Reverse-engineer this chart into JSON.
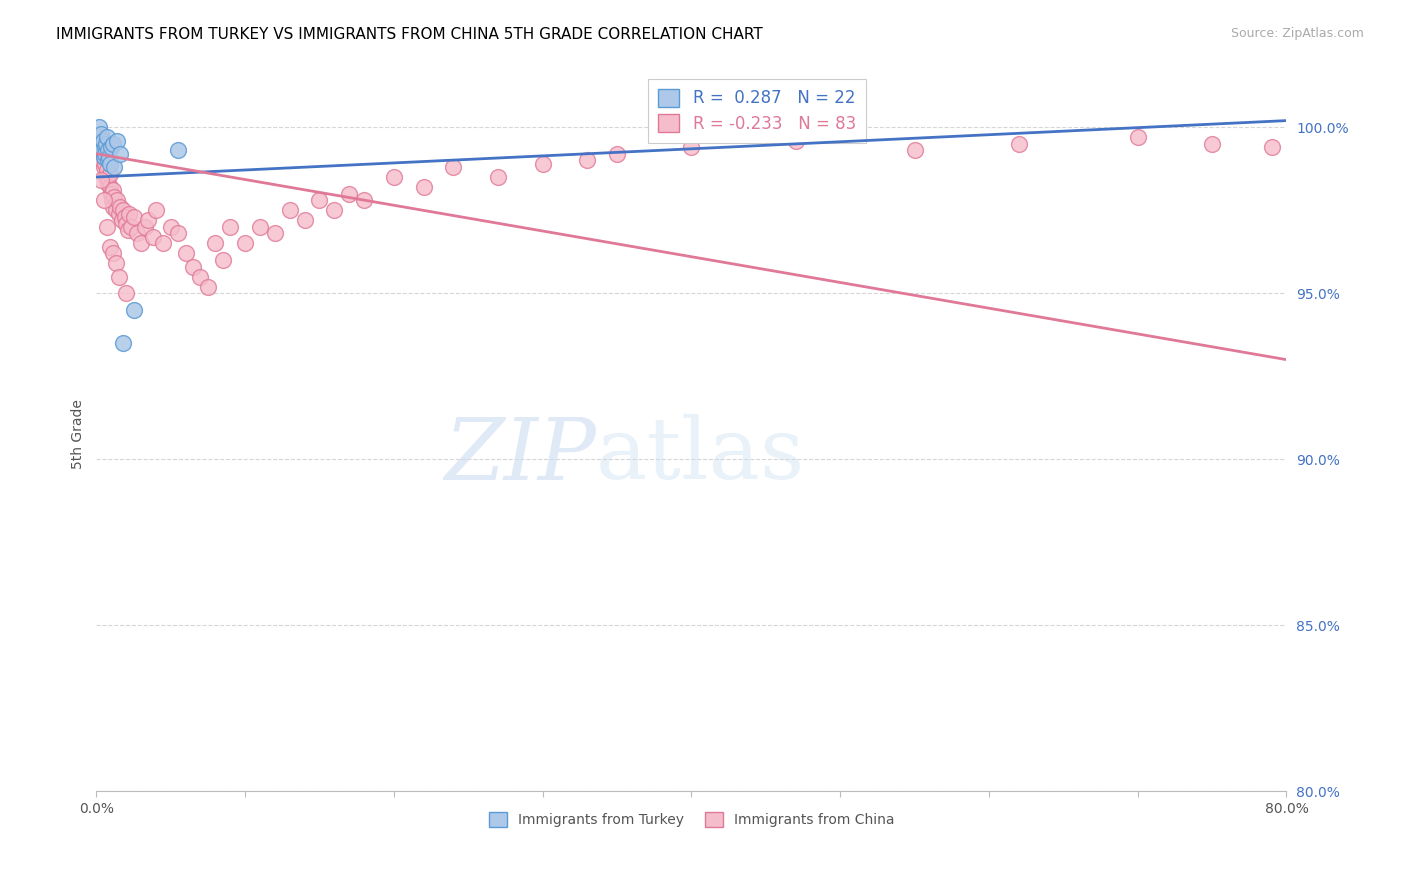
{
  "title": "IMMIGRANTS FROM TURKEY VS IMMIGRANTS FROM CHINA 5TH GRADE CORRELATION CHART",
  "source": "Source: ZipAtlas.com",
  "ylabel": "5th Grade",
  "xlim": [
    0.0,
    80.0
  ],
  "ylim": [
    80.0,
    101.5
  ],
  "yticks": [
    80.0,
    85.0,
    90.0,
    95.0,
    100.0
  ],
  "ytick_labels": [
    "80.0%",
    "85.0%",
    "90.0%",
    "95.0%",
    "100.0%"
  ],
  "title_fontsize": 11,
  "source_fontsize": 9,
  "legend_line1": "R =  0.287   N = 22",
  "legend_line2": "R = -0.233   N = 83",
  "turkey_color": "#adc8e8",
  "turkey_edge_color": "#5b9bd5",
  "china_color": "#f5bccb",
  "china_edge_color": "#e07898",
  "trendline_turkey_color": "#4472c4",
  "trendline_china_color": "#e07898",
  "watermark_zip": "ZIP",
  "watermark_atlas": "atlas",
  "turkey_x": [
    0.15,
    0.3,
    0.35,
    0.4,
    0.45,
    0.5,
    0.55,
    0.6,
    0.65,
    0.7,
    0.75,
    0.8,
    0.85,
    0.9,
    1.0,
    1.1,
    1.2,
    1.4,
    1.6,
    1.8,
    2.5,
    5.5
  ],
  "turkey_y": [
    100.0,
    99.8,
    99.5,
    99.3,
    99.6,
    99.1,
    99.4,
    99.2,
    99.5,
    99.7,
    99.3,
    99.0,
    99.1,
    98.9,
    99.4,
    99.5,
    98.8,
    99.6,
    99.2,
    93.5,
    94.5,
    99.3
  ],
  "china_x": [
    0.1,
    0.15,
    0.2,
    0.25,
    0.3,
    0.35,
    0.4,
    0.45,
    0.5,
    0.5,
    0.6,
    0.6,
    0.65,
    0.7,
    0.75,
    0.8,
    0.85,
    0.9,
    0.95,
    1.0,
    1.05,
    1.1,
    1.15,
    1.2,
    1.3,
    1.4,
    1.5,
    1.6,
    1.7,
    1.8,
    1.9,
    2.0,
    2.1,
    2.2,
    2.3,
    2.5,
    2.7,
    3.0,
    3.3,
    3.5,
    3.8,
    4.0,
    4.5,
    5.0,
    5.5,
    6.0,
    6.5,
    7.0,
    7.5,
    8.0,
    8.5,
    9.0,
    10.0,
    11.0,
    12.0,
    13.0,
    14.0,
    15.0,
    16.0,
    17.0,
    18.0,
    20.0,
    22.0,
    24.0,
    27.0,
    30.0,
    33.0,
    35.0,
    40.0,
    47.0,
    55.0,
    62.0,
    70.0,
    75.0,
    79.0,
    0.3,
    0.5,
    0.7,
    0.9,
    1.1,
    1.3,
    1.5,
    2.0
  ],
  "china_y": [
    99.2,
    99.5,
    99.7,
    99.4,
    99.3,
    99.6,
    99.0,
    99.2,
    98.8,
    99.5,
    98.9,
    99.1,
    98.5,
    98.7,
    98.3,
    98.5,
    99.0,
    98.2,
    98.6,
    98.0,
    97.8,
    97.6,
    98.1,
    97.9,
    97.5,
    97.8,
    97.4,
    97.6,
    97.2,
    97.5,
    97.3,
    97.1,
    96.9,
    97.4,
    97.0,
    97.3,
    96.8,
    96.5,
    97.0,
    97.2,
    96.7,
    97.5,
    96.5,
    97.0,
    96.8,
    96.2,
    95.8,
    95.5,
    95.2,
    96.5,
    96.0,
    97.0,
    96.5,
    97.0,
    96.8,
    97.5,
    97.2,
    97.8,
    97.5,
    98.0,
    97.8,
    98.5,
    98.2,
    98.8,
    98.5,
    98.9,
    99.0,
    99.2,
    99.4,
    99.6,
    99.3,
    99.5,
    99.7,
    99.5,
    99.4,
    98.4,
    97.8,
    97.0,
    96.4,
    96.2,
    95.9,
    95.5,
    95.0
  ],
  "trendline_turkey_x0": 0.0,
  "trendline_turkey_y0": 98.5,
  "trendline_turkey_x1": 80.0,
  "trendline_turkey_y1": 100.2,
  "trendline_china_x0": 0.0,
  "trendline_china_y0": 99.2,
  "trendline_china_x1": 80.0,
  "trendline_china_y1": 93.0
}
